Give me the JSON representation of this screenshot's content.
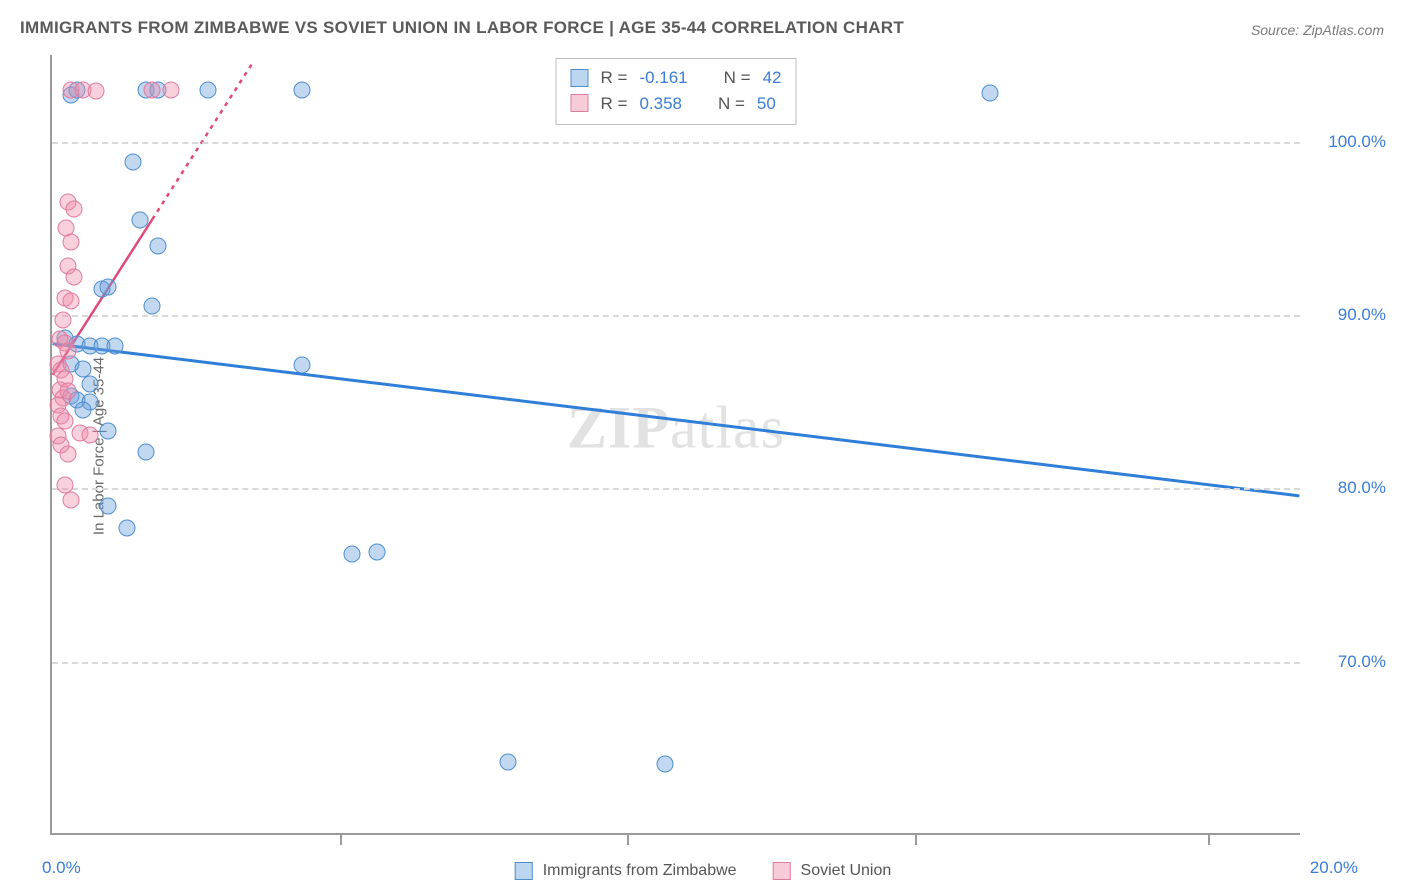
{
  "title": "IMMIGRANTS FROM ZIMBABWE VS SOVIET UNION IN LABOR FORCE | AGE 35-44 CORRELATION CHART",
  "source": "Source: ZipAtlas.com",
  "y_axis_label": "In Labor Force | Age 35-44",
  "watermark": {
    "bold": "ZIP",
    "light": "atlas"
  },
  "chart": {
    "type": "scatter",
    "xlim": [
      0,
      20
    ],
    "ylim": [
      60,
      105
    ],
    "x_ticks": [
      0,
      20
    ],
    "x_tick_labels": [
      "0.0%",
      "20.0%"
    ],
    "y_ticks": [
      70,
      80,
      90,
      100
    ],
    "y_tick_labels": [
      "70.0%",
      "80.0%",
      "90.0%",
      "100.0%"
    ],
    "x_tick_minor": [
      4.6,
      9.2,
      13.8,
      18.5
    ],
    "background_color": "#ffffff",
    "grid_color": "#d8d8d8",
    "axis_color": "#9a9a9a",
    "series": [
      {
        "name": "Immigrants from Zimbabwe",
        "color_fill": "rgba(108,163,220,0.42)",
        "color_stroke": "#4f8fcf",
        "marker_size": 17,
        "trend": {
          "x1": 0,
          "y1": 88.3,
          "x2": 20,
          "y2": 79.5,
          "stroke": "#2f7ed8",
          "width": 3,
          "dash": "none"
        },
        "stats": {
          "R": "-0.161",
          "N": "42"
        },
        "points": [
          [
            0.3,
            102.7
          ],
          [
            0.4,
            103
          ],
          [
            1.5,
            103
          ],
          [
            1.7,
            103
          ],
          [
            2.5,
            103
          ],
          [
            4.0,
            103
          ],
          [
            15.0,
            102.8
          ],
          [
            1.3,
            98.8
          ],
          [
            1.4,
            95.5
          ],
          [
            1.7,
            94
          ],
          [
            0.8,
            91.5
          ],
          [
            0.9,
            91.6
          ],
          [
            1.6,
            90.5
          ],
          [
            0.2,
            88.7
          ],
          [
            0.4,
            88.3
          ],
          [
            0.6,
            88.2
          ],
          [
            0.8,
            88.2
          ],
          [
            1.0,
            88.2
          ],
          [
            0.3,
            87.2
          ],
          [
            0.5,
            86.9
          ],
          [
            0.6,
            86
          ],
          [
            0.3,
            85.3
          ],
          [
            0.4,
            85.1
          ],
          [
            0.6,
            85
          ],
          [
            0.5,
            84.5
          ],
          [
            0.9,
            83.3
          ],
          [
            1.5,
            82.1
          ],
          [
            4.0,
            87.1
          ],
          [
            0.9,
            79
          ],
          [
            1.2,
            77.7
          ],
          [
            4.8,
            76.2
          ],
          [
            5.2,
            76.3
          ],
          [
            7.3,
            64.2
          ],
          [
            9.8,
            64.1
          ]
        ]
      },
      {
        "name": "Soviet Union",
        "color_fill": "rgba(240,140,170,0.40)",
        "color_stroke": "#e07ba0",
        "marker_size": 17,
        "trend": {
          "x1": 0,
          "y1": 86.5,
          "x2": 3.2,
          "y2": 104.5,
          "stroke": "#e04a7a",
          "width": 2.5,
          "dash": "4,5",
          "solid_until": 1.6
        },
        "stats": {
          "R": "0.358",
          "N": "50"
        },
        "points": [
          [
            0.3,
            103
          ],
          [
            0.5,
            103
          ],
          [
            0.7,
            102.9
          ],
          [
            1.6,
            103
          ],
          [
            1.9,
            103
          ],
          [
            0.25,
            96.5
          ],
          [
            0.35,
            96.1
          ],
          [
            0.22,
            95.0
          ],
          [
            0.3,
            94.2
          ],
          [
            0.25,
            92.8
          ],
          [
            0.35,
            92.2
          ],
          [
            0.2,
            91.0
          ],
          [
            0.3,
            90.8
          ],
          [
            0.18,
            89.7
          ],
          [
            0.12,
            88.6
          ],
          [
            0.2,
            88.4
          ],
          [
            0.25,
            87.9
          ],
          [
            0.1,
            87.2
          ],
          [
            0.15,
            86.8
          ],
          [
            0.2,
            86.3
          ],
          [
            0.12,
            85.7
          ],
          [
            0.18,
            85.2
          ],
          [
            0.25,
            85.6
          ],
          [
            0.1,
            84.8
          ],
          [
            0.15,
            84.2
          ],
          [
            0.2,
            83.9
          ],
          [
            0.1,
            83.0
          ],
          [
            0.15,
            82.5
          ],
          [
            0.25,
            82.0
          ],
          [
            0.45,
            83.2
          ],
          [
            0.6,
            83.1
          ],
          [
            0.2,
            80.2
          ],
          [
            0.3,
            79.3
          ]
        ]
      }
    ]
  },
  "legend_stats": {
    "R_label": "R =",
    "N_label": "N ="
  },
  "bottom_legend": {
    "items": [
      "Immigrants from Zimbabwe",
      "Soviet Union"
    ]
  }
}
